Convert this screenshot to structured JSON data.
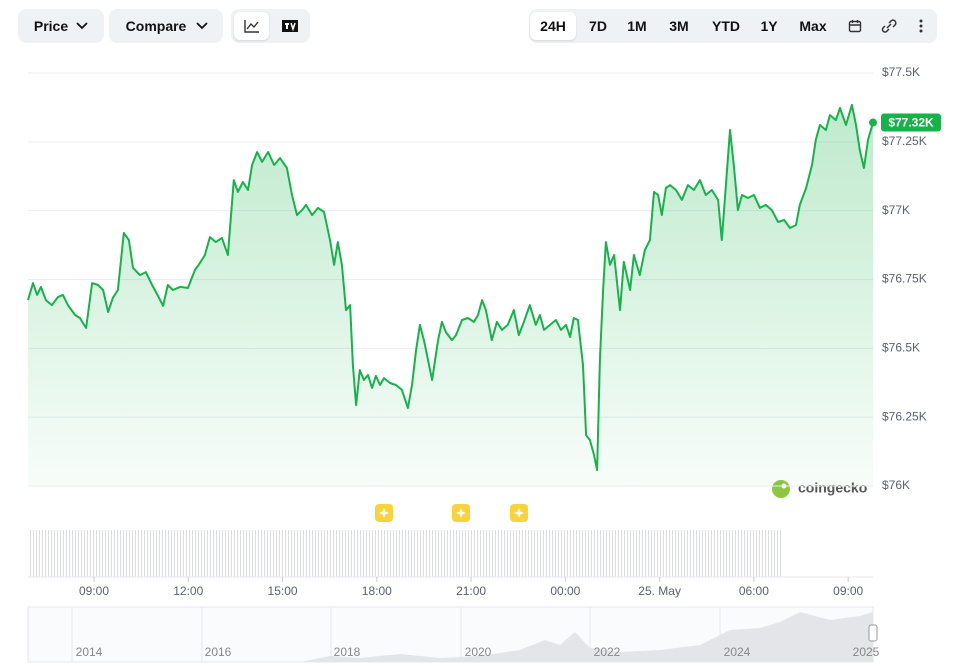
{
  "toolbar": {
    "metric": "Price",
    "compare": "Compare",
    "ranges": [
      "24H",
      "7D",
      "1M",
      "3M",
      "YTD",
      "1Y",
      "Max"
    ]
  },
  "watermark": "coingecko",
  "navigator": {
    "years": [
      "2014",
      "2016",
      "2018",
      "2020",
      "2022",
      "2024",
      "2025"
    ]
  },
  "chart_data": {
    "type": "line",
    "color": "#16b34a",
    "grid": true,
    "current_price": {
      "value": 77320,
      "label": "$77.32K"
    },
    "xlim": [
      6.9,
      33.79
    ],
    "xticks": [
      {
        "value": 9,
        "label": "09:00"
      },
      {
        "value": 12,
        "label": "12:00"
      },
      {
        "value": 15,
        "label": "15:00"
      },
      {
        "value": 18,
        "label": "18:00"
      },
      {
        "value": 21,
        "label": "21:00"
      },
      {
        "value": 24,
        "label": "00:00"
      },
      {
        "value": 27,
        "label": "25. May"
      },
      {
        "value": 30,
        "label": "06:00"
      },
      {
        "value": 33,
        "label": "09:00"
      }
    ],
    "ylim": [
      76000,
      77500
    ],
    "yticks": [
      {
        "value": 76000,
        "label": "$76K"
      },
      {
        "value": 76250,
        "label": "$76.25K"
      },
      {
        "value": 76500,
        "label": "$76.5K"
      },
      {
        "value": 76750,
        "label": "$76.75K"
      },
      {
        "value": 77000,
        "label": "$77K"
      },
      {
        "value": 77250,
        "label": "$77.25K"
      },
      {
        "value": 77500,
        "label": "$77.5K"
      }
    ],
    "x": [
      6.9,
      7.06,
      7.19,
      7.31,
      7.47,
      7.66,
      7.85,
      8.01,
      8.17,
      8.4,
      8.55,
      8.75,
      8.94,
      9.13,
      9.29,
      9.45,
      9.6,
      9.76,
      9.95,
      10.11,
      10.24,
      10.46,
      10.65,
      10.85,
      11.04,
      11.2,
      11.35,
      11.51,
      11.74,
      11.99,
      12.21,
      12.37,
      12.53,
      12.69,
      12.88,
      13.07,
      13.26,
      13.45,
      13.58,
      13.74,
      13.9,
      14.03,
      14.19,
      14.35,
      14.54,
      14.73,
      14.92,
      15.14,
      15.3,
      15.46,
      15.62,
      15.75,
      15.94,
      16.13,
      16.32,
      16.51,
      16.64,
      16.76,
      16.89,
      17.02,
      17.15,
      17.24,
      17.34,
      17.46,
      17.59,
      17.72,
      17.85,
      17.97,
      18.1,
      18.23,
      18.42,
      18.61,
      18.8,
      18.99,
      19.12,
      19.25,
      19.37,
      19.5,
      19.63,
      19.76,
      19.95,
      20.07,
      20.2,
      20.39,
      20.52,
      20.71,
      20.9,
      21.09,
      21.22,
      21.35,
      21.47,
      21.66,
      21.82,
      21.98,
      22.17,
      22.36,
      22.52,
      22.68,
      22.87,
      23.06,
      23.19,
      23.32,
      23.51,
      23.7,
      23.86,
      24.02,
      24.15,
      24.27,
      24.4,
      24.56,
      24.66,
      24.78,
      24.91,
      25.01,
      25.1,
      25.2,
      25.29,
      25.42,
      25.55,
      25.74,
      25.86,
      26.06,
      26.18,
      26.37,
      26.53,
      26.69,
      26.82,
      26.95,
      27.07,
      27.2,
      27.33,
      27.52,
      27.71,
      27.9,
      28.09,
      28.28,
      28.47,
      28.66,
      28.86,
      28.98,
      29.11,
      29.24,
      29.36,
      29.49,
      29.62,
      29.81,
      30.0,
      30.19,
      30.38,
      30.57,
      30.77,
      30.96,
      31.15,
      31.34,
      31.46,
      31.66,
      31.85,
      31.97,
      32.1,
      32.29,
      32.42,
      32.61,
      32.74,
      32.93,
      33.12,
      33.25,
      33.37,
      33.5,
      33.63,
      33.79
    ],
    "values": [
      76675,
      76737,
      76694,
      76723,
      76675,
      76657,
      76686,
      76694,
      76657,
      76621,
      76610,
      76574,
      76737,
      76730,
      76712,
      76632,
      76683,
      76712,
      76919,
      76893,
      76792,
      76766,
      76777,
      76730,
      76690,
      76654,
      76730,
      76712,
      76723,
      76719,
      76784,
      76810,
      76839,
      76904,
      76886,
      76901,
      76839,
      77111,
      77068,
      77104,
      77075,
      77166,
      77213,
      77177,
      77213,
      77166,
      77191,
      77155,
      77057,
      76984,
      77002,
      77021,
      76984,
      77010,
      76995,
      76893,
      76803,
      76886,
      76803,
      76639,
      76657,
      76439,
      76294,
      76421,
      76385,
      76403,
      76356,
      76400,
      76367,
      76392,
      76374,
      76367,
      76349,
      76283,
      76367,
      76494,
      76585,
      76530,
      76458,
      76385,
      76530,
      76596,
      76559,
      76530,
      76548,
      76603,
      76610,
      76596,
      76621,
      76675,
      76639,
      76530,
      76596,
      76567,
      76585,
      76639,
      76548,
      76596,
      76657,
      76585,
      76621,
      76567,
      76585,
      76603,
      76567,
      76585,
      76541,
      76610,
      76603,
      76439,
      76185,
      76167,
      76113,
      76058,
      76458,
      76712,
      76886,
      76803,
      76839,
      76639,
      76814,
      76712,
      76839,
      76766,
      76857,
      76893,
      77068,
      77057,
      76984,
      77082,
      77093,
      77075,
      77039,
      77093,
      77075,
      77111,
      77057,
      77075,
      77039,
      76893,
      77093,
      77293,
      77166,
      77002,
      77057,
      77046,
      77057,
      77010,
      77021,
      77002,
      76959,
      76966,
      76937,
      76948,
      77021,
      77082,
      77166,
      77257,
      77311,
      77293,
      77347,
      77329,
      77373,
      77311,
      77384,
      77311,
      77220,
      77155,
      77257,
      77320
    ]
  }
}
